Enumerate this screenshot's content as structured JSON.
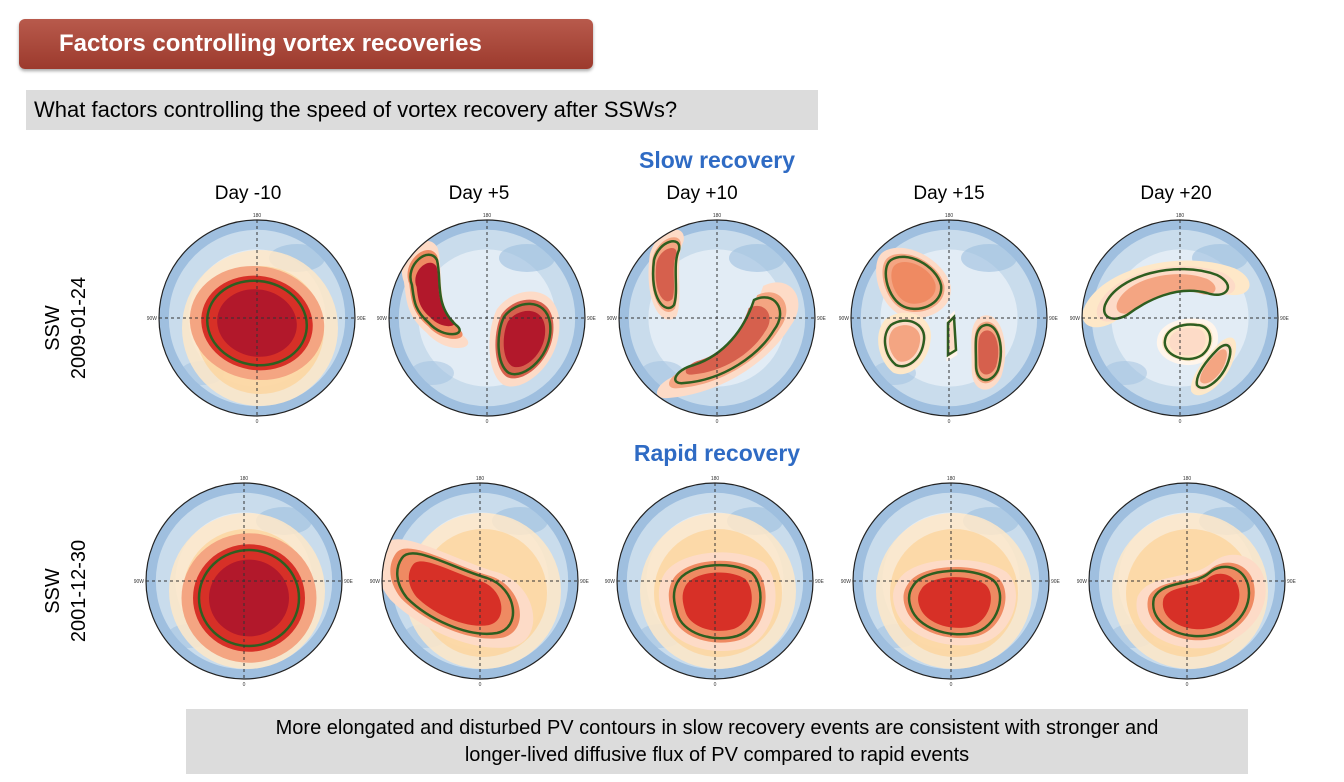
{
  "header": {
    "title": "Factors controlling vortex recoveries"
  },
  "question": "What factors controlling the speed of vortex recovery after SSWs?",
  "sections": {
    "slow": "Slow recovery",
    "rapid": "Rapid recovery"
  },
  "days": [
    "Day -10",
    "Day +5",
    "Day +10",
    "Day +15",
    "Day +20"
  ],
  "rows": [
    {
      "line1": "SSW",
      "line2": "2009-01-24"
    },
    {
      "line1": "SSW",
      "line2": "2001-12-30"
    }
  ],
  "map_axis_labels": {
    "top": "180",
    "bottom": "0",
    "left": "90W",
    "right": "90E"
  },
  "colors": {
    "title_banner": "#a8473a",
    "section_title": "#2f6bc4",
    "contour": "#2e5e20",
    "pv_high": "#b2182b",
    "pv_mid": "#fdd49e",
    "pv_low": "#4a7fbf"
  },
  "conclusion": {
    "line1": "More elongated and disturbed PV contours in slow recovery events are consistent with stronger and",
    "line2": "longer-lived diffusive flux of PV compared to rapid events"
  }
}
